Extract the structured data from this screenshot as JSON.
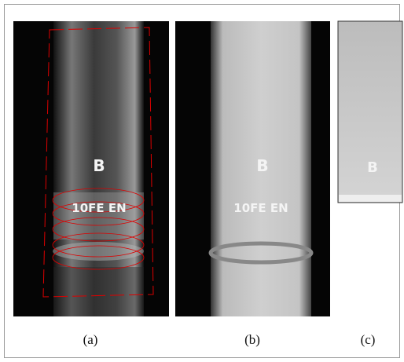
{
  "panels": [
    {
      "label": "(a)",
      "marks": [
        "B",
        "10FE EN"
      ]
    },
    {
      "label": "(b)",
      "marks": [
        "B",
        "10FE EN"
      ]
    },
    {
      "label": "(c)",
      "marks": [
        "B"
      ]
    }
  ]
}
